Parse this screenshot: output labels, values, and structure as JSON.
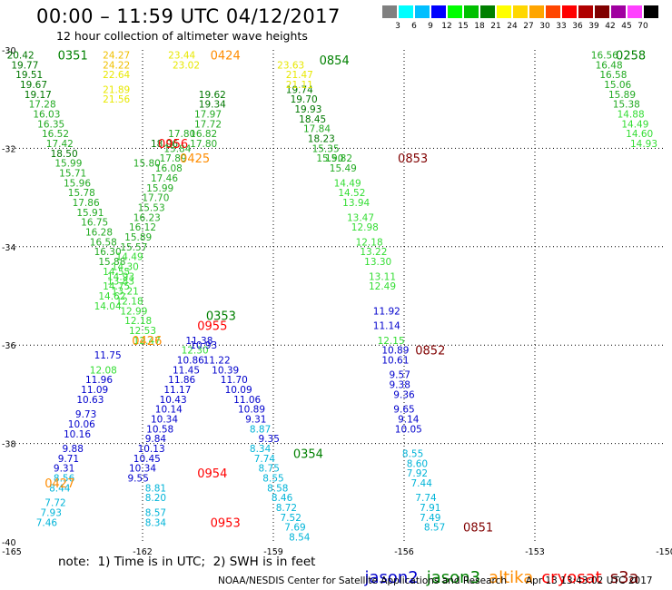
{
  "header": {
    "title": "00:00 – 11:59 UTC 04/12/2017",
    "subtitle": "12 hour collection of altimeter wave heights"
  },
  "colorbar": {
    "labels": [
      "3",
      "6",
      "9",
      "12",
      "15",
      "18",
      "21",
      "24",
      "27",
      "30",
      "33",
      "36",
      "39",
      "42",
      "45",
      "70"
    ],
    "colors": [
      "#808080",
      "#00ffff",
      "#00bfff",
      "#0000ff",
      "#00ff00",
      "#00c000",
      "#008000",
      "#ffff00",
      "#ffd700",
      "#ffa500",
      "#ff4500",
      "#ff0000",
      "#b00000",
      "#800000",
      "#a000a0",
      "#ff40ff",
      "#000000"
    ]
  },
  "note": "note:  1) Time is in UTC;  2) SWH is in feet",
  "legend": {
    "jason2": {
      "label": "jason2",
      "color": "#0000cc"
    },
    "jason3": {
      "label": "jason3",
      "color": "#008000"
    },
    "altika": {
      "label": "altika",
      "color": "#ff8c00"
    },
    "cryosat": {
      "label": "cryosat",
      "color": "#ff0000"
    },
    "s3a": {
      "label": "s3a",
      "color": "#800000"
    }
  },
  "footer": {
    "center": "NOAA/NESDIS Center for Satellite Applications and Research",
    "timestamp": "Apr 13 13:43:02 UTC 2017"
  },
  "chart_data": {
    "type": "scatter",
    "title": "00:00 – 11:59 UTC 04/12/2017",
    "xlim": [
      -165,
      -150
    ],
    "ylim": [
      -40,
      -30
    ],
    "x_ticks": [
      "-165",
      "-162",
      "-159",
      "-156",
      "-153",
      "-150"
    ],
    "y_ticks": [
      "-30",
      "-32",
      "-34",
      "-36",
      "-38",
      "-40"
    ],
    "grid": true,
    "color_scale_ft": [
      3,
      6,
      9,
      12,
      15,
      18,
      21,
      24,
      27,
      30,
      33,
      36,
      39,
      42,
      45,
      70
    ],
    "tracks": [
      {
        "satellite": "jason3",
        "pass_labels": [
          {
            "time": "0351",
            "lon": -163.6,
            "lat": -30.1
          }
        ],
        "points": [
          [
            -164.8,
            -30.1,
            20.42
          ],
          [
            -164.7,
            -30.3,
            19.77
          ],
          [
            -164.6,
            -30.5,
            19.51
          ],
          [
            -164.5,
            -30.7,
            19.67
          ],
          [
            -164.4,
            -30.9,
            19.17
          ],
          [
            -164.3,
            -31.1,
            17.28
          ],
          [
            -164.2,
            -31.3,
            16.03
          ],
          [
            -164.1,
            -31.5,
            16.35
          ],
          [
            -164.0,
            -31.7,
            16.52
          ],
          [
            -163.9,
            -31.9,
            17.42
          ],
          [
            -163.8,
            -32.1,
            18.5
          ],
          [
            -163.7,
            -32.3,
            15.99
          ],
          [
            -163.6,
            -32.5,
            15.71
          ],
          [
            -163.5,
            -32.7,
            15.96
          ],
          [
            -163.4,
            -32.9,
            15.78
          ],
          [
            -163.3,
            -33.1,
            17.86
          ],
          [
            -163.2,
            -33.3,
            15.91
          ],
          [
            -163.1,
            -33.5,
            16.75
          ],
          [
            -163.0,
            -33.7,
            16.28
          ],
          [
            -162.9,
            -33.9,
            16.58
          ],
          [
            -162.8,
            -34.1,
            16.3
          ],
          [
            -162.7,
            -34.3,
            15.88
          ],
          [
            -162.6,
            -34.5,
            14.55
          ],
          [
            -162.5,
            -34.7,
            13.83
          ],
          [
            -162.4,
            -34.9,
            13.21
          ],
          [
            -162.3,
            -35.1,
            12.18
          ],
          [
            -162.2,
            -35.3,
            12.99
          ],
          [
            -162.1,
            -35.5,
            12.18
          ],
          [
            -162.0,
            -35.7,
            12.53
          ],
          [
            -161.9,
            -35.9,
            12.47
          ]
        ]
      },
      {
        "satellite": "jason3",
        "pass_labels": [
          {
            "time": "0353",
            "lon": -160.2,
            "lat": -35.4
          }
        ],
        "points": [
          [
            -161.1,
            -31.7,
            17.8
          ],
          [
            -161.2,
            -32.0,
            15.84
          ],
          [
            -161.3,
            -32.2,
            17.89
          ],
          [
            -161.4,
            -32.4,
            16.08
          ],
          [
            -161.5,
            -32.6,
            17.46
          ],
          [
            -161.6,
            -32.8,
            15.99
          ],
          [
            -161.7,
            -33.0,
            17.7
          ],
          [
            -161.8,
            -33.2,
            15.53
          ],
          [
            -161.9,
            -33.4,
            16.23
          ],
          [
            -162.0,
            -33.6,
            16.12
          ],
          [
            -162.1,
            -33.8,
            15.89
          ],
          [
            -162.2,
            -34.0,
            15.57
          ],
          [
            -162.3,
            -34.2,
            14.49
          ],
          [
            -162.4,
            -34.4,
            14.3
          ],
          [
            -162.5,
            -34.6,
            14.93
          ],
          [
            -162.6,
            -34.8,
            14.75
          ],
          [
            -162.7,
            -35.0,
            14.62
          ],
          [
            -162.8,
            -35.2,
            14.04
          ]
        ]
      },
      {
        "satellite": "jason3",
        "pass_labels": [
          {
            "time": "0354",
            "lon": -158.2,
            "lat": -38.2
          }
        ],
        "points": [
          [
            -160.4,
            -30.9,
            19.62
          ],
          [
            -160.4,
            -31.1,
            19.34
          ],
          [
            -160.5,
            -31.3,
            17.97
          ],
          [
            -160.5,
            -31.5,
            17.72
          ],
          [
            -160.6,
            -31.7,
            16.82
          ],
          [
            -160.6,
            -31.9,
            17.8
          ]
        ]
      },
      {
        "satellite": "jason3",
        "pass_labels": [
          {
            "time": "0854",
            "lon": -157.6,
            "lat": -30.2
          }
        ],
        "points": [
          [
            -158.4,
            -30.8,
            19.74
          ],
          [
            -158.3,
            -31.0,
            19.7
          ],
          [
            -158.2,
            -31.2,
            19.93
          ],
          [
            -158.1,
            -31.4,
            18.45
          ],
          [
            -158.0,
            -31.6,
            17.84
          ],
          [
            -157.9,
            -31.8,
            18.23
          ],
          [
            -157.8,
            -32.0,
            15.35
          ],
          [
            -157.7,
            -32.2,
            15.9
          ]
        ]
      },
      {
        "satellite": "jason3",
        "pass_labels": [
          {
            "time": "0258",
            "lon": -150.8,
            "lat": -30.1
          }
        ],
        "points": [
          [
            -151.4,
            -30.1,
            16.56
          ],
          [
            -151.3,
            -30.3,
            16.48
          ],
          [
            -151.2,
            -30.5,
            16.58
          ],
          [
            -151.1,
            -30.7,
            15.06
          ],
          [
            -151.0,
            -30.9,
            15.89
          ],
          [
            -150.9,
            -31.1,
            15.38
          ],
          [
            -150.8,
            -31.3,
            14.88
          ],
          [
            -150.7,
            -31.5,
            14.49
          ],
          [
            -150.6,
            -31.7,
            14.6
          ],
          [
            -150.5,
            -31.9,
            14.93
          ]
        ]
      },
      {
        "satellite": "altika",
        "pass_labels": [
          {
            "time": "0424",
            "lon": -160.1,
            "lat": -30.1
          },
          {
            "time": "0425",
            "lon": -160.8,
            "lat": -32.2
          },
          {
            "time": "0426",
            "lon": -161.9,
            "lat": -35.9
          },
          {
            "time": "0427",
            "lon": -163.9,
            "lat": -38.8
          }
        ],
        "points": [
          [
            -162.6,
            -30.1,
            24.27
          ],
          [
            -162.6,
            -30.3,
            24.22
          ],
          [
            -162.6,
            -30.5,
            22.64
          ],
          [
            -162.6,
            -30.8,
            21.89
          ],
          [
            -162.6,
            -31.0,
            21.56
          ],
          [
            -161.1,
            -30.1,
            23.44
          ],
          [
            -161.0,
            -30.3,
            23.02
          ]
        ]
      },
      {
        "satellite": "altika",
        "pass_labels": [],
        "points": [
          [
            -158.6,
            -30.3,
            23.63
          ],
          [
            -158.4,
            -30.5,
            21.47
          ],
          [
            -158.4,
            -30.7,
            21.11
          ]
        ]
      },
      {
        "satellite": "jason2",
        "pass_labels": [],
        "points": [
          [
            -162.8,
            -36.2,
            11.75
          ],
          [
            -162.9,
            -36.5,
            12.08
          ],
          [
            -163.0,
            -36.7,
            11.96
          ],
          [
            -163.1,
            -36.9,
            11.09
          ],
          [
            -163.2,
            -37.1,
            10.63
          ],
          [
            -163.3,
            -37.4,
            9.73
          ],
          [
            -163.4,
            -37.6,
            10.06
          ],
          [
            -163.5,
            -37.8,
            10.16
          ],
          [
            -163.6,
            -38.1,
            9.88
          ],
          [
            -163.7,
            -38.3,
            9.71
          ],
          [
            -163.8,
            -38.5,
            9.31
          ]
        ]
      },
      {
        "satellite": "jason2",
        "pass_labels": [],
        "points": [
          [
            -160.7,
            -35.9,
            11.38
          ],
          [
            -160.8,
            -36.1,
            12.3
          ],
          [
            -160.9,
            -36.3,
            10.86
          ],
          [
            -161.0,
            -36.5,
            11.45
          ],
          [
            -161.1,
            -36.7,
            11.86
          ],
          [
            -161.2,
            -36.9,
            11.17
          ],
          [
            -161.3,
            -37.1,
            10.43
          ],
          [
            -161.4,
            -37.3,
            10.14
          ],
          [
            -161.5,
            -37.5,
            10.34
          ],
          [
            -161.6,
            -37.7,
            10.58
          ],
          [
            -161.7,
            -37.9,
            9.84
          ],
          [
            -161.8,
            -38.1,
            10.13
          ],
          [
            -161.9,
            -38.3,
            10.45
          ],
          [
            -162.0,
            -38.5,
            10.34
          ],
          [
            -162.1,
            -38.7,
            9.55
          ]
        ]
      },
      {
        "satellite": "jason2",
        "pass_labels": [],
        "points": [
          [
            -160.6,
            -36.0,
            10.93
          ],
          [
            -160.3,
            -36.3,
            11.22
          ],
          [
            -160.1,
            -36.5,
            10.39
          ],
          [
            -159.9,
            -36.7,
            11.7
          ],
          [
            -159.8,
            -36.9,
            10.09
          ],
          [
            -159.6,
            -37.1,
            11.06
          ],
          [
            -159.5,
            -37.3,
            10.89
          ],
          [
            -159.4,
            -37.5,
            9.31
          ],
          [
            -159.3,
            -37.7,
            8.87
          ],
          [
            -159.1,
            -37.9,
            9.35
          ]
        ]
      },
      {
        "satellite": "jason2",
        "pass_labels": [],
        "points": [
          [
            -156.4,
            -35.3,
            11.92
          ],
          [
            -156.4,
            -35.6,
            11.14
          ],
          [
            -156.3,
            -35.9,
            12.15
          ],
          [
            -156.2,
            -36.1,
            10.89
          ],
          [
            -156.2,
            -36.3,
            10.61
          ],
          [
            -156.1,
            -36.6,
            9.57
          ],
          [
            -156.1,
            -36.8,
            9.38
          ],
          [
            -156.0,
            -37.0,
            9.36
          ],
          [
            -156.0,
            -37.3,
            9.65
          ],
          [
            -155.9,
            -37.5,
            9.14
          ],
          [
            -155.9,
            -37.7,
            10.05
          ]
        ]
      },
      {
        "satellite": "s3a",
        "pass_labels": [
          {
            "time": "0853",
            "lon": -155.8,
            "lat": -32.2
          },
          {
            "time": "0852",
            "lon": -155.4,
            "lat": -36.1
          },
          {
            "time": "0851",
            "lon": -154.3,
            "lat": -39.7
          }
        ],
        "points": [
          [
            -157.5,
            -32.2,
            15.82
          ],
          [
            -157.4,
            -32.4,
            15.49
          ],
          [
            -157.3,
            -32.7,
            14.49
          ],
          [
            -157.2,
            -32.9,
            14.52
          ],
          [
            -157.1,
            -33.1,
            13.94
          ],
          [
            -157.0,
            -33.4,
            13.47
          ],
          [
            -156.9,
            -33.6,
            12.98
          ],
          [
            -156.8,
            -33.9,
            12.18
          ],
          [
            -156.7,
            -34.1,
            13.22
          ],
          [
            -156.6,
            -34.3,
            13.3
          ],
          [
            -156.5,
            -34.6,
            13.11
          ],
          [
            -156.5,
            -34.8,
            12.49
          ]
        ]
      },
      {
        "satellite": "cryosat",
        "pass_labels": [
          {
            "time": "0956",
            "lon": -161.3,
            "lat": -31.9
          },
          {
            "time": "0955",
            "lon": -160.4,
            "lat": -35.6
          },
          {
            "time": "0954",
            "lon": -160.4,
            "lat": -38.6
          },
          {
            "time": "0953",
            "lon": -160.1,
            "lat": -39.6
          }
        ],
        "points": [
          [
            -161.5,
            -31.9,
            18.06
          ]
        ]
      },
      {
        "satellite": "cryosat",
        "pass_labels": [],
        "points": [
          [
            -161.9,
            -32.3,
            15.8
          ]
        ]
      },
      {
        "satellite": "other",
        "pass_labels": [],
        "points": [
          [
            -163.8,
            -38.7,
            8.56
          ],
          [
            -163.9,
            -38.9,
            8.44
          ],
          [
            -164.0,
            -39.2,
            7.72
          ],
          [
            -164.1,
            -39.4,
            7.93
          ],
          [
            -164.2,
            -39.6,
            7.46
          ]
        ]
      },
      {
        "satellite": "other",
        "pass_labels": [],
        "points": [
          [
            -161.7,
            -38.9,
            8.81
          ],
          [
            -161.7,
            -39.1,
            8.2
          ],
          [
            -161.7,
            -39.4,
            8.57
          ],
          [
            -161.7,
            -39.6,
            8.34
          ]
        ]
      },
      {
        "satellite": "other",
        "pass_labels": [],
        "points": [
          [
            -159.3,
            -38.1,
            8.34
          ],
          [
            -159.2,
            -38.3,
            7.74
          ],
          [
            -159.1,
            -38.5,
            8.75
          ],
          [
            -159.0,
            -38.7,
            8.55
          ],
          [
            -158.9,
            -38.9,
            8.58
          ],
          [
            -158.8,
            -39.1,
            8.46
          ],
          [
            -158.7,
            -39.3,
            8.72
          ],
          [
            -158.6,
            -39.5,
            7.52
          ],
          [
            -158.5,
            -39.7,
            7.69
          ],
          [
            -158.4,
            -39.9,
            8.54
          ]
        ]
      },
      {
        "satellite": "other",
        "pass_labels": [],
        "points": [
          [
            -155.8,
            -38.2,
            8.55
          ],
          [
            -155.7,
            -38.4,
            8.6
          ],
          [
            -155.7,
            -38.6,
            7.92
          ],
          [
            -155.6,
            -38.8,
            7.44
          ],
          [
            -155.5,
            -39.1,
            7.74
          ],
          [
            -155.4,
            -39.3,
            7.91
          ],
          [
            -155.4,
            -39.5,
            7.49
          ],
          [
            -155.3,
            -39.7,
            8.57
          ]
        ]
      }
    ]
  }
}
